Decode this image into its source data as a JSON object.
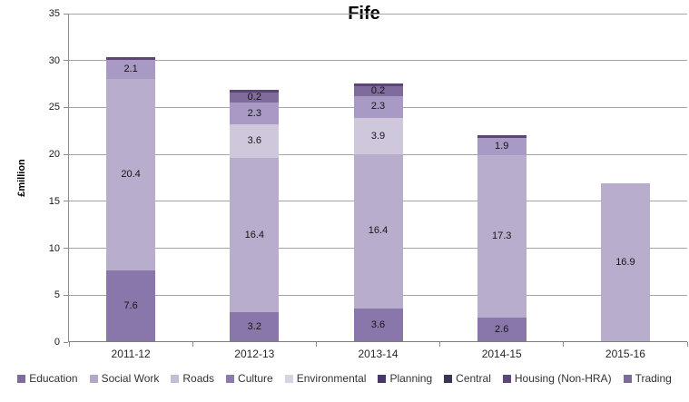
{
  "chart_data": {
    "type": "bar",
    "stacked": true,
    "title": "Fife",
    "xlabel": "",
    "ylabel": "£million",
    "ylim": [
      0,
      35
    ],
    "yticks": [
      0,
      5,
      10,
      15,
      20,
      25,
      30,
      35
    ],
    "grid": "horizontal",
    "legend_position": "bottom",
    "categories": [
      "2011-12",
      "2012-13",
      "2013-14",
      "2014-15",
      "2015-16"
    ],
    "legend": [
      {
        "label": "Education",
        "color": "#7e6ca1"
      },
      {
        "label": "Social Work",
        "color": "#b3a7c7"
      },
      {
        "label": "Roads",
        "color": "#c5bcd5"
      },
      {
        "label": "Culture",
        "color": "#8d7bb0"
      },
      {
        "label": "Environmental",
        "color": "#d8d2e2"
      },
      {
        "label": "Planning",
        "color": "#473967"
      },
      {
        "label": "Central",
        "color": "#3f3453"
      },
      {
        "label": "Housing (Non-HRA)",
        "color": "#5c4979"
      },
      {
        "label": "Trading",
        "color": "#7d6a9d"
      }
    ],
    "bars": [
      {
        "category": "2011-12",
        "segments": [
          {
            "series": "Education",
            "value": 7.6,
            "label": "7.6",
            "color": "#8977ac"
          },
          {
            "series": "Social Work",
            "value": 20.4,
            "label": "20.4",
            "color": "#b8adcc"
          },
          {
            "series": "Culture",
            "value": 2.1,
            "label": "2.1",
            "color": "#a89ac4"
          },
          {
            "series": "",
            "value": 0.3,
            "label": "",
            "color": "#5a4574"
          }
        ]
      },
      {
        "category": "2012-13",
        "segments": [
          {
            "series": "Education",
            "value": 3.2,
            "label": "3.2",
            "color": "#8977ac"
          },
          {
            "series": "Social Work",
            "value": 16.4,
            "label": "16.4",
            "color": "#b8adcc"
          },
          {
            "series": "Roads",
            "value": 3.6,
            "label": "3.6",
            "color": "#cfc8dd"
          },
          {
            "series": "Culture",
            "value": 2.3,
            "label": "2.3",
            "color": "#a89ac4"
          },
          {
            "series": "Planning",
            "value": 0.2,
            "label": "0.2",
            "color": "#7f6b9c"
          },
          {
            "series": "",
            "value": 0.3,
            "label": "",
            "color": "#5a4574"
          }
        ]
      },
      {
        "category": "2013-14",
        "segments": [
          {
            "series": "Education",
            "value": 3.6,
            "label": "3.6",
            "color": "#8977ac"
          },
          {
            "series": "Social Work",
            "value": 16.4,
            "label": "16.4",
            "color": "#b8adcc"
          },
          {
            "series": "Roads",
            "value": 3.9,
            "label": "3.9",
            "color": "#cfc8dd"
          },
          {
            "series": "Culture",
            "value": 2.3,
            "label": "2.3",
            "color": "#a89ac4"
          },
          {
            "series": "Planning",
            "value": 0.2,
            "label": "0.2",
            "color": "#7f6b9c"
          },
          {
            "series": "",
            "value": 0.3,
            "label": "",
            "color": "#5a4574"
          }
        ]
      },
      {
        "category": "2014-15",
        "segments": [
          {
            "series": "Education",
            "value": 2.6,
            "label": "2.6",
            "color": "#8977ac"
          },
          {
            "series": "Social Work",
            "value": 17.3,
            "label": "17.3",
            "color": "#b8adcc"
          },
          {
            "series": "Culture",
            "value": 1.9,
            "label": "1.9",
            "color": "#a89ac4"
          },
          {
            "series": "",
            "value": 0.2,
            "label": "",
            "color": "#5a4574"
          }
        ]
      },
      {
        "category": "2015-16",
        "segments": [
          {
            "series": "Social Work",
            "value": 16.9,
            "label": "16.9",
            "color": "#b8adcc"
          }
        ]
      }
    ]
  },
  "style_colors": {
    "gridline": "#a6a6a6",
    "axis": "#8c8c8c",
    "background": "#ffffff",
    "text": "#262626"
  }
}
